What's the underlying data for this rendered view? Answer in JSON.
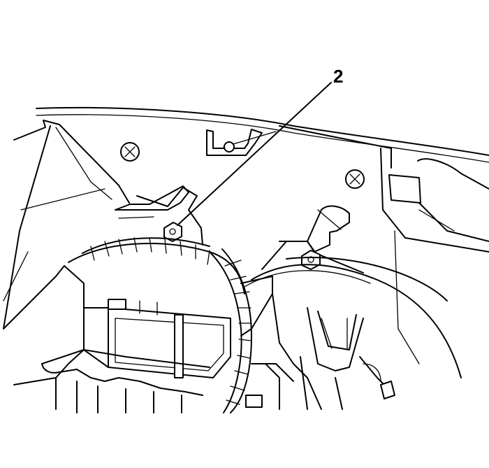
{
  "figure": {
    "callouts": [
      {
        "label": "2"
      }
    ]
  }
}
